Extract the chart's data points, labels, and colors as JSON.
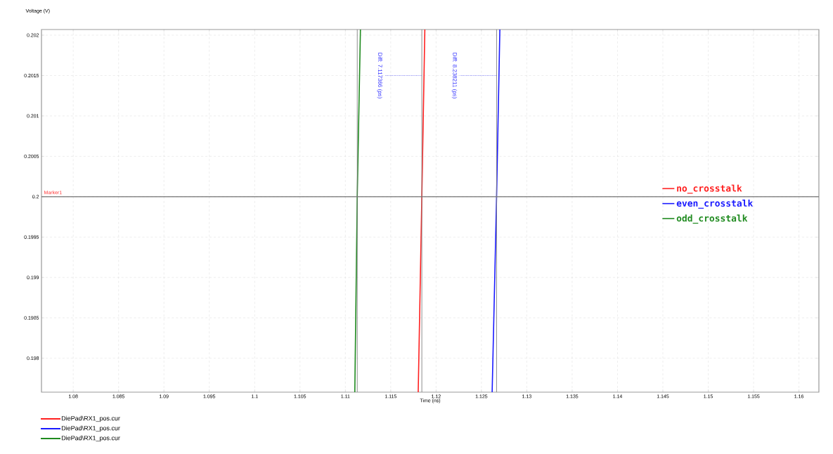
{
  "chart_data": {
    "type": "line",
    "xlabel": "Time (ns)",
    "ylabel": "Voltage (V)",
    "xlim": [
      1.0765,
      1.1622
    ],
    "ylim": [
      0.19758,
      0.20207
    ],
    "xticks": [
      1.08,
      1.085,
      1.09,
      1.095,
      1.1,
      1.105,
      1.11,
      1.115,
      1.12,
      1.125,
      1.13,
      1.135,
      1.14,
      1.145,
      1.15,
      1.155,
      1.16
    ],
    "yticks": [
      0.198,
      0.1985,
      0.199,
      0.1995,
      0.2,
      0.2005,
      0.201,
      0.2015,
      0.202
    ],
    "grid": true,
    "legend": "right",
    "series": [
      {
        "name": "no_crosstalk",
        "color": "#ff2020",
        "x": [
          1.11803,
          1.11843,
          1.11876
        ],
        "values": [
          0.19758,
          0.2,
          0.20207
        ]
      },
      {
        "name": "even_crosstalk",
        "color": "#1a1aff",
        "x": [
          1.12618,
          1.12667,
          1.12703
        ],
        "values": [
          0.19758,
          0.2,
          0.20207
        ]
      },
      {
        "name": "odd_crosstalk",
        "color": "#1e8a1e",
        "x": [
          1.11104,
          1.11131,
          1.11166
        ],
        "values": [
          0.19758,
          0.2,
          0.20207
        ]
      }
    ],
    "ref_lines": [
      {
        "axis": "y",
        "value": 0.2,
        "label": "Marker1",
        "color": "#707070"
      },
      {
        "axis": "x",
        "value": 1.11131,
        "color": "#808080"
      },
      {
        "axis": "x",
        "value": 1.11843,
        "color": "#808080"
      },
      {
        "axis": "x",
        "value": 1.12667,
        "color": "#808080"
      }
    ],
    "annotations": [
      {
        "text": "Diff: 7.117366 (ps)",
        "x": 1.11843,
        "y": 0.2015
      },
      {
        "text": "Diff: 8.238211 (ps)",
        "x": 1.12667,
        "y": 0.2015
      },
      "DiePad\\RX1_pos.cur",
      "DiePad\\RX1_pos.cur",
      "DiePad\\RX1_pos.cur"
    ]
  }
}
